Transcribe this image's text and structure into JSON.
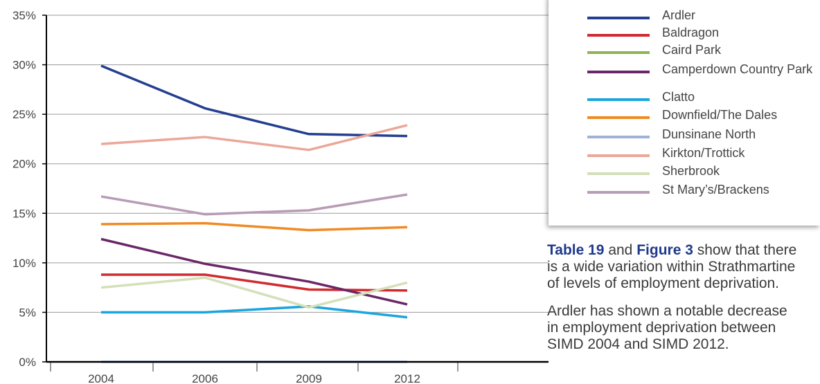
{
  "chart_data": {
    "type": "line",
    "categories": [
      "2004",
      "2006",
      "2009",
      "2012"
    ],
    "y_ticks": [
      "0%",
      "5%",
      "10%",
      "15%",
      "20%",
      "25%",
      "30%",
      "35%"
    ],
    "ylim": [
      0,
      35
    ],
    "grid": true,
    "legend_position": "right",
    "series": [
      {
        "name": "Ardler",
        "color": "#243f8f",
        "values": [
          29.9,
          25.6,
          23.0,
          22.8
        ]
      },
      {
        "name": "Baldragon",
        "color": "#d12a2f",
        "values": [
          8.8,
          8.8,
          7.3,
          7.2
        ]
      },
      {
        "name": "Caird Park",
        "color": "#8db352",
        "values": [
          null,
          null,
          null,
          null
        ]
      },
      {
        "name": "Camperdown Country Park",
        "color": "#6a2767",
        "values": [
          12.4,
          9.9,
          8.1,
          5.8
        ]
      },
      {
        "name": "Clatto",
        "color": "#1aa5df",
        "values": [
          5.0,
          5.0,
          5.6,
          4.5
        ]
      },
      {
        "name": "Downfield/The Dales",
        "color": "#f08a24",
        "values": [
          13.9,
          14.0,
          13.3,
          13.6
        ]
      },
      {
        "name": "Dunsinane North",
        "color": "#9fb1d8",
        "values": [
          0,
          0,
          0,
          0
        ]
      },
      {
        "name": "Kirkton/Trottick",
        "color": "#eba79a",
        "values": [
          22.0,
          22.7,
          21.4,
          23.9
        ]
      },
      {
        "name": "Sherbrook",
        "color": "#d3e0b8",
        "values": [
          7.5,
          8.5,
          5.5,
          8.0
        ]
      },
      {
        "name": "St Mary's/Brackens",
        "color": "#b89bb5",
        "values": [
          16.7,
          14.9,
          15.3,
          16.9
        ]
      }
    ]
  },
  "legend": {
    "items": [
      {
        "label": "Ardler",
        "color": "#243f8f"
      },
      {
        "label": "Baldragon",
        "color": "#d12a2f"
      },
      {
        "label": "Caird Park",
        "color": "#8db352"
      },
      {
        "label": "Camperdown Country Park",
        "color": "#6a2767"
      },
      {
        "label": "Clatto",
        "color": "#1aa5df"
      },
      {
        "label": "Downfield/The Dales",
        "color": "#f08a24"
      },
      {
        "label": "Dunsinane North",
        "color": "#9fb1d8"
      },
      {
        "label": "Kirkton/Trottick",
        "color": "#eba79a"
      },
      {
        "label": "Sherbrook",
        "color": "#d3e0b8"
      },
      {
        "label": "St Mary’s/Brackens",
        "color": "#b89bb5"
      }
    ]
  },
  "caption": {
    "p1_ref1": "Table 19",
    "p1_and": " and ",
    "p1_ref2": "Figure 3",
    "p1_line1_rest": " show that there",
    "p1_line2": "is a wide variation within Strathmartine",
    "p1_line3": "of levels of employment deprivation.",
    "p2_line1": "Ardler has shown a notable decrease",
    "p2_line2": "in employment deprivation between",
    "p2_line3": "SIMD 2004 and SIMD 2012."
  }
}
